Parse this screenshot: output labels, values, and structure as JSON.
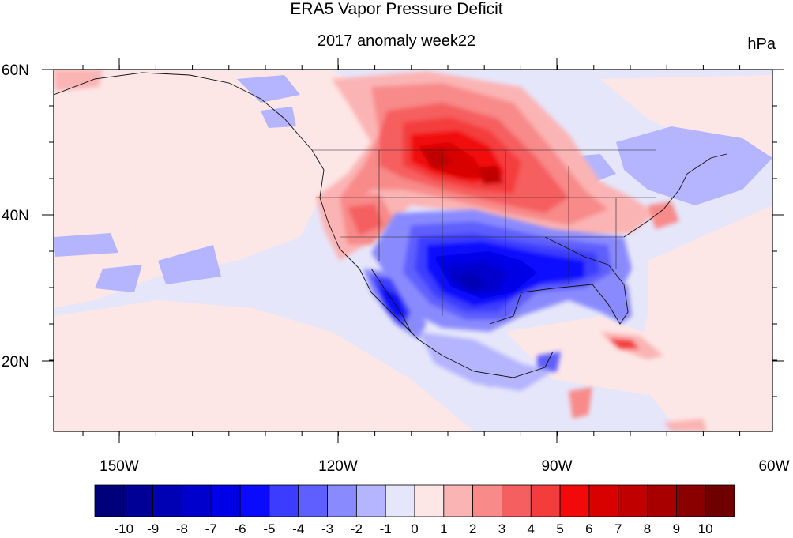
{
  "title": "ERA5 Vapor Pressure Deficit",
  "subtitle": "2017 anomaly week22",
  "units": "hPa",
  "axes": {
    "lon_labels": [
      "150W",
      "120W",
      "90W",
      "60W"
    ],
    "lat_labels": [
      "60N",
      "40N",
      "20N"
    ]
  },
  "colorbar": {
    "labels": [
      "-10",
      "-9",
      "-8",
      "-7",
      "-6",
      "-5",
      "-4",
      "-3",
      "-2",
      "-1",
      "0",
      "1",
      "2",
      "3",
      "4",
      "5",
      "6",
      "7",
      "8",
      "9",
      "10"
    ],
    "colors": [
      "#00007a",
      "#000096",
      "#0000b4",
      "#0000cc",
      "#0000e6",
      "#0a0aff",
      "#3c3cff",
      "#5f5fff",
      "#8a8aff",
      "#b4b4ff",
      "#e6e6fa",
      "#fde6e6",
      "#fbb4b4",
      "#f88a8a",
      "#f65f5f",
      "#f43c3c",
      "#f20a0a",
      "#d90000",
      "#c00000",
      "#a80000",
      "#8a0000",
      "#6e0000"
    ]
  },
  "map_colors": {
    "background": "#e6e6fa",
    "ocean_pos": "#fde6e6"
  }
}
